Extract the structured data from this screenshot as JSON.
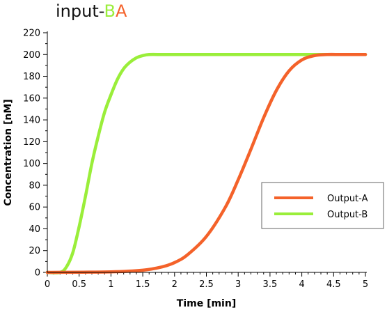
{
  "title": {
    "prefix": "input-",
    "b": "B",
    "a": "A"
  },
  "colors": {
    "output_a": "#f4622a",
    "output_b": "#9aee3a",
    "title_b": "#9aee3a",
    "title_a": "#f4622a"
  },
  "chart_data": {
    "type": "line",
    "xlabel": "Time [min]",
    "ylabel": "Concentration [nM]",
    "xlim": [
      0,
      5
    ],
    "ylim": [
      0,
      220
    ],
    "x_ticks": [
      "0",
      "0.5",
      "1",
      "1.5",
      "2",
      "2.5",
      "3",
      "3.5",
      "4",
      "4.5",
      "5"
    ],
    "y_ticks": [
      "0",
      "20",
      "40",
      "60",
      "80",
      "100",
      "120",
      "140",
      "160",
      "180",
      "200",
      "220"
    ],
    "legend": {
      "placement": "right",
      "entries": [
        "Output-A",
        "Output-B"
      ]
    },
    "series": [
      {
        "name": "Output-A",
        "x": [
          0,
          1.0,
          1.5,
          1.8,
          2.0,
          2.2,
          2.5,
          2.8,
          3.0,
          3.2,
          3.4,
          3.6,
          3.8,
          4.0,
          4.2,
          4.4,
          4.6,
          4.8,
          5.0
        ],
        "y": [
          0,
          0.5,
          2,
          5,
          9,
          16,
          33,
          60,
          85,
          113,
          142,
          167,
          185,
          195,
          199,
          200,
          200,
          200,
          200
        ]
      },
      {
        "name": "Output-B",
        "x": [
          0,
          0.2,
          0.3,
          0.4,
          0.5,
          0.6,
          0.7,
          0.8,
          0.9,
          1.0,
          1.1,
          1.2,
          1.3,
          1.4,
          1.5,
          1.6,
          1.8,
          2.0,
          3.0,
          4.0,
          5.0
        ],
        "y": [
          0,
          0,
          5,
          18,
          42,
          70,
          100,
          125,
          147,
          163,
          177,
          187,
          193,
          197,
          199,
          200,
          200,
          200,
          200,
          200,
          200
        ]
      }
    ]
  }
}
